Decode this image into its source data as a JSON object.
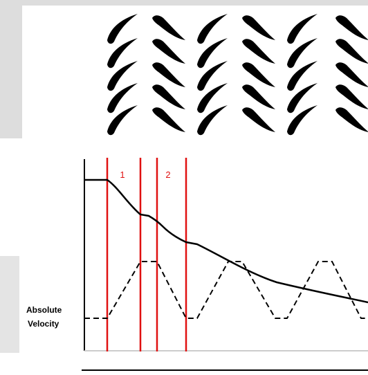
{
  "labels": {
    "stage_1": "1",
    "stage_2": "2",
    "y_label_line_1": "Absolute",
    "y_label_line_2": "Velocity"
  }
}
